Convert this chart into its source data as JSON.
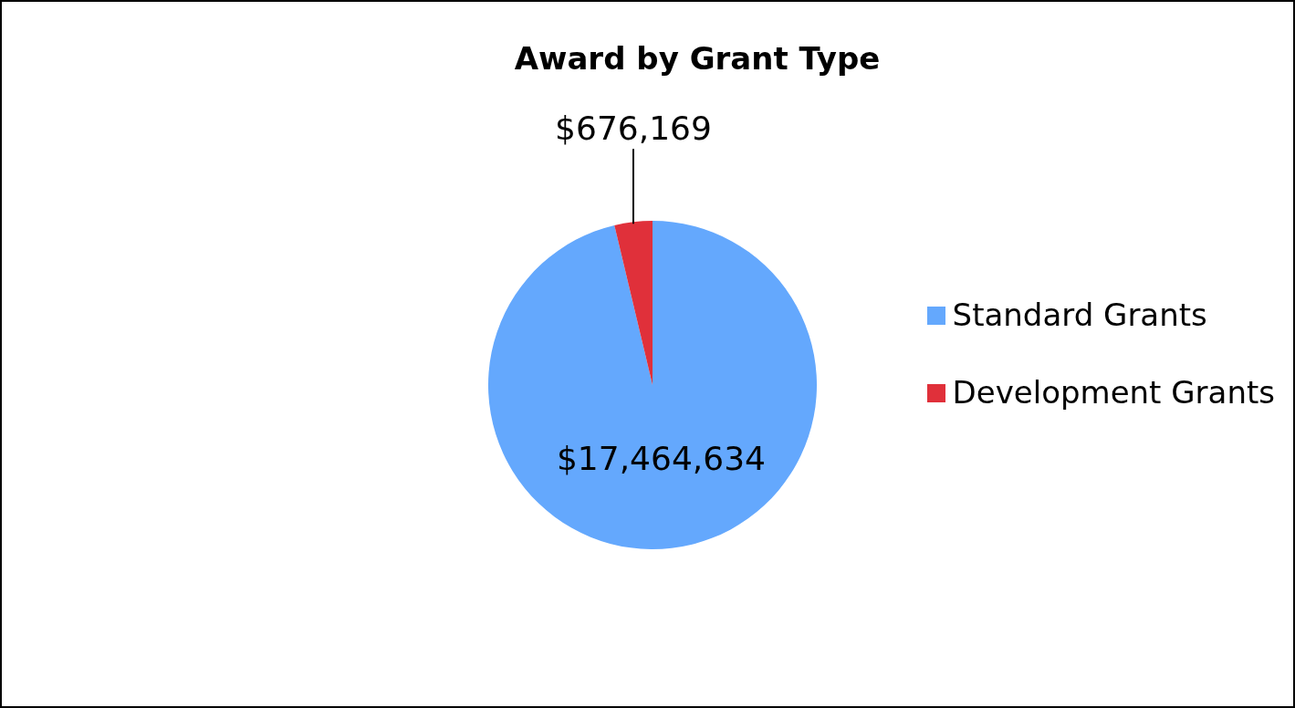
{
  "chart_data": {
    "type": "pie",
    "title": "Award by Grant Type",
    "categories": [
      "Standard Grants",
      "Development Grants"
    ],
    "values": [
      17464634,
      676169
    ],
    "colors": [
      "#64a8fd",
      "#e0303a"
    ],
    "value_labels": [
      "$17,464,634",
      "$676,169"
    ],
    "legend": "right"
  }
}
